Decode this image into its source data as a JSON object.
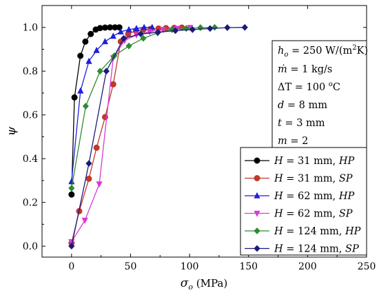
{
  "chart_data": {
    "type": "line",
    "xlabel": "σo (MPa)",
    "ylabel": "ψ",
    "xlim": [
      -25,
      250
    ],
    "ylim": [
      -0.05,
      1.1
    ],
    "xticks": [
      0,
      50,
      100,
      150,
      200,
      250
    ],
    "yticks": [
      0.0,
      0.2,
      0.4,
      0.6,
      0.8,
      1.0
    ],
    "xtick_labels": [
      "0",
      "50",
      "100",
      "150",
      "200",
      "250"
    ],
    "ytick_labels": [
      "0.0",
      "0.2",
      "0.4",
      "0.6",
      "0.8",
      "1.0"
    ],
    "grid": false,
    "legend_position": "bottom-right",
    "series": [
      {
        "name": "H = 31 mm, HP",
        "color": "#000000",
        "marker": "circle",
        "x": [
          0,
          2.5,
          7.5,
          11.7,
          16.3,
          20.5,
          24.2,
          28.4,
          32.6,
          36.8,
          40.5
        ],
        "y": [
          0.236,
          0.68,
          0.87,
          0.935,
          0.97,
          0.99,
          0.997,
          0.999,
          1.0,
          1.0,
          1.0
        ]
      },
      {
        "name": "H = 31 mm, SP",
        "color": "#c0392b",
        "marker": "circle",
        "x": [
          0,
          6.5,
          14.7,
          21.2,
          28.4,
          35.3,
          41.7,
          48.0,
          54.6,
          61.0,
          67.0,
          73.7,
          80.0,
          87.0,
          93.5
        ],
        "y": [
          0.014,
          0.16,
          0.308,
          0.45,
          0.59,
          0.74,
          0.935,
          0.97,
          0.985,
          0.99,
          0.993,
          0.995,
          0.997,
          0.998,
          0.999
        ]
      },
      {
        "name": "H = 62 mm, HP",
        "color": "#1f1fdf",
        "marker": "triangle",
        "x": [
          0,
          7.6,
          14.7,
          21.2,
          28.4,
          35.3,
          41.7,
          48.6,
          55.0,
          61.5,
          68.3
        ],
        "y": [
          0.295,
          0.71,
          0.845,
          0.895,
          0.935,
          0.96,
          0.98,
          0.99,
          0.995,
          1.0,
          1.0
        ]
      },
      {
        "name": "H = 62 mm, SP",
        "color": "#d63ad6",
        "marker": "triangle-down",
        "x": [
          0,
          11.3,
          23.5,
          35.3,
          44.9,
          55.0,
          66.2,
          77.5,
          89.2,
          100.5
        ],
        "y": [
          0.02,
          0.118,
          0.284,
          0.86,
          0.94,
          0.965,
          0.98,
          0.99,
          0.995,
          0.999
        ]
      },
      {
        "name": "H = 124 mm, HP",
        "color": "#2e8b2e",
        "marker": "diamond",
        "x": [
          0,
          12.0,
          24.2,
          36.2,
          48.6,
          60.8,
          72.9,
          85.2,
          97.2,
          109.2,
          121.3
        ],
        "y": [
          0.265,
          0.64,
          0.8,
          0.87,
          0.915,
          0.95,
          0.975,
          0.99,
          0.995,
          0.999,
          1.0
        ]
      },
      {
        "name": "H = 124 mm, SP",
        "color": "#1a1a7a",
        "marker": "diamond",
        "x": [
          0,
          14.7,
          29.5,
          44.2,
          58.6,
          73.3,
          88.0,
          102.5,
          117.4,
          132.0,
          146.8
        ],
        "y": [
          0.0,
          0.378,
          0.8,
          0.95,
          0.97,
          0.978,
          0.985,
          0.99,
          0.995,
          0.999,
          1.0
        ]
      }
    ],
    "annotations": [
      {
        "base": "h",
        "sub": "o",
        "rest": " = 250 W/(m",
        "sup2": "2",
        "tail": "K)"
      },
      {
        "text_italic": "ṁ",
        "rest": " = 1 kg/s"
      },
      {
        "text_plain": "ΔT = 100 ",
        "sup": "o",
        "tail": "C"
      },
      {
        "text_italic": "d",
        "rest": " = 8 mm"
      },
      {
        "text_italic": "t",
        "rest": " = 3 mm"
      },
      {
        "text_italic": "m",
        "rest": " = 2"
      }
    ]
  }
}
